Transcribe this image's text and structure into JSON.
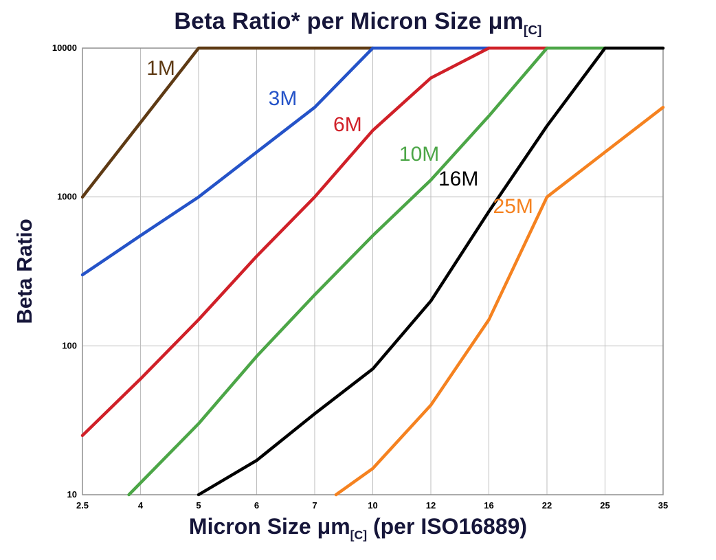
{
  "title": {
    "text": "Beta Ratio* per Micron Size μm",
    "subscript": "[C]"
  },
  "y_axis": {
    "label": "Beta Ratio",
    "tick_labels": [
      "10",
      "100",
      "1000",
      "10000"
    ]
  },
  "x_axis": {
    "label_prefix": "Micron Size μm",
    "label_subscript": "[C]",
    "label_suffix": " (per ISO16889)",
    "tick_labels": [
      "2.5",
      "4",
      "5",
      "6",
      "7",
      "10",
      "12",
      "16",
      "22",
      "25",
      "35"
    ]
  },
  "style": {
    "background": "#ffffff",
    "grid_color": "#bdbdbd",
    "axis_color": "#8f8f8f",
    "title_color": "#16163a",
    "tick_color": "#000000"
  },
  "chart_data": {
    "type": "line",
    "title": "Beta Ratio* per Micron Size μm[C]",
    "xlabel": "Micron Size μm[C] (per ISO16889)",
    "ylabel": "Beta Ratio",
    "x_scale": "categorical",
    "y_scale": "log",
    "ylim": [
      10,
      10000
    ],
    "y_ticks": [
      10,
      100,
      1000,
      10000
    ],
    "categories": [
      2.5,
      4,
      5,
      6,
      7,
      10,
      12,
      16,
      22,
      25,
      35
    ],
    "grid": true,
    "legend": "inline-labels",
    "series": [
      {
        "name": "1M",
        "color": "#5e3a14",
        "points": [
          [
            2.5,
            1000
          ],
          [
            5,
            10000
          ],
          [
            10,
            10000
          ]
        ],
        "label_x": 4.35,
        "label_y": 7200
      },
      {
        "name": "3M",
        "color": "#2553c8",
        "points": [
          [
            2.5,
            300
          ],
          [
            4,
            550
          ],
          [
            5,
            1000
          ],
          [
            6,
            2000
          ],
          [
            7,
            4000
          ],
          [
            10,
            10000
          ],
          [
            16,
            10000
          ]
        ],
        "label_x": 6.45,
        "label_y": 4500
      },
      {
        "name": "6M",
        "color": "#d02028",
        "points": [
          [
            2.5,
            25
          ],
          [
            4,
            60
          ],
          [
            5,
            150
          ],
          [
            6,
            400
          ],
          [
            7,
            1000
          ],
          [
            10,
            2800
          ],
          [
            12,
            6300
          ],
          [
            16,
            10000
          ],
          [
            22,
            10000
          ]
        ],
        "label_x": 8.7,
        "label_y": 3000
      },
      {
        "name": "10M",
        "color": "#4ca647",
        "points": [
          [
            3.7,
            10
          ],
          [
            5,
            30
          ],
          [
            6,
            85
          ],
          [
            7,
            220
          ],
          [
            10,
            550
          ],
          [
            12,
            1300
          ],
          [
            16,
            3500
          ],
          [
            22,
            10000
          ],
          [
            25,
            10000
          ]
        ],
        "label_x": 11.6,
        "label_y": 1900
      },
      {
        "name": "16M",
        "color": "#000000",
        "points": [
          [
            5,
            10
          ],
          [
            6,
            17
          ],
          [
            7,
            35
          ],
          [
            10,
            70
          ],
          [
            12,
            200
          ],
          [
            16,
            800
          ],
          [
            22,
            3000
          ],
          [
            25,
            10000
          ],
          [
            35,
            10000
          ]
        ],
        "label_x": 13.9,
        "label_y": 1300
      },
      {
        "name": "25M",
        "color": "#f58220",
        "points": [
          [
            8.1,
            10
          ],
          [
            10,
            15
          ],
          [
            12,
            40
          ],
          [
            16,
            150
          ],
          [
            22,
            1000
          ],
          [
            25,
            2000
          ],
          [
            35,
            4000
          ]
        ],
        "label_x": 18.5,
        "label_y": 850
      }
    ]
  }
}
